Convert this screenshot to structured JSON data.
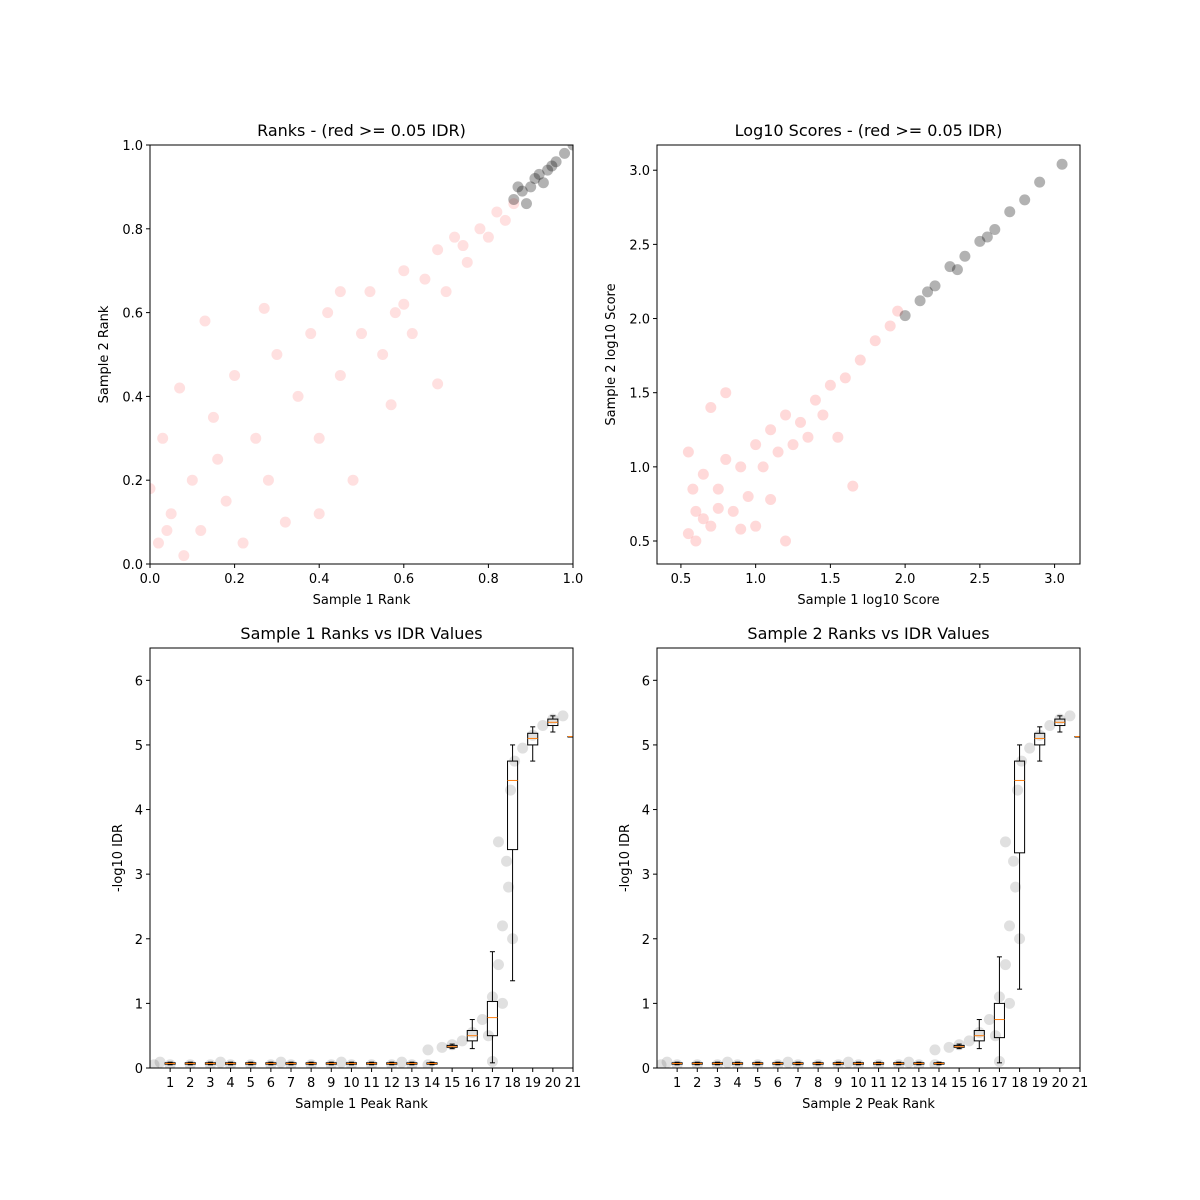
{
  "chart_data": [
    {
      "type": "scatter",
      "title": "Ranks - (red >= 0.05 IDR)",
      "xlabel": "Sample 1 Rank",
      "ylabel": "Sample 2 Rank",
      "xlim": [
        0,
        1
      ],
      "ylim": [
        0,
        1
      ],
      "xticks": [
        {
          "value": 0,
          "label": "0.0"
        },
        {
          "value": 0.2,
          "label": "0.2"
        },
        {
          "value": 0.4,
          "label": "0.4"
        },
        {
          "value": 0.6,
          "label": "0.6"
        },
        {
          "value": 0.8,
          "label": "0.8"
        },
        {
          "value": 1,
          "label": "1.0"
        }
      ],
      "yticks": [
        {
          "value": 0,
          "label": "0.0"
        },
        {
          "value": 0.2,
          "label": "0.2"
        },
        {
          "value": 0.4,
          "label": "0.4"
        },
        {
          "value": 0.6,
          "label": "0.6"
        },
        {
          "value": 0.8,
          "label": "0.8"
        },
        {
          "value": 1,
          "label": "1.0"
        }
      ],
      "series": [
        {
          "color": "#ff0000",
          "alpha": 0.12,
          "x": [
            0.02,
            0.05,
            0.03,
            0.08,
            0.1,
            0.12,
            0.15,
            0.18,
            0.2,
            0.22,
            0.25,
            0.28,
            0.3,
            0.32,
            0.35,
            0.38,
            0.4,
            0.42,
            0.45,
            0.48,
            0.5,
            0.52,
            0.55,
            0.58,
            0.6,
            0.62,
            0.65,
            0.68,
            0.7,
            0.72,
            0.75,
            0.78,
            0.8,
            0.82,
            0.84,
            0.86,
            0.07,
            0.13,
            0.27,
            0.4,
            0.57,
            0.68,
            0.0,
            0.45,
            0.04,
            0.16,
            0.6,
            0.74
          ],
          "values": [
            0.05,
            0.12,
            0.3,
            0.02,
            0.2,
            0.08,
            0.35,
            0.15,
            0.45,
            0.05,
            0.3,
            0.2,
            0.5,
            0.1,
            0.4,
            0.55,
            0.3,
            0.6,
            0.45,
            0.2,
            0.55,
            0.65,
            0.5,
            0.6,
            0.7,
            0.55,
            0.68,
            0.75,
            0.65,
            0.78,
            0.72,
            0.8,
            0.78,
            0.84,
            0.82,
            0.86,
            0.42,
            0.58,
            0.61,
            0.12,
            0.38,
            0.43,
            0.18,
            0.65,
            0.08,
            0.25,
            0.62,
            0.76
          ]
        },
        {
          "color": "#000000",
          "alpha": 0.3,
          "x": [
            0.86,
            0.88,
            0.9,
            0.92,
            0.94,
            0.96,
            0.98,
            1.0,
            0.89,
            0.93,
            0.87,
            0.95,
            0.91
          ],
          "values": [
            0.87,
            0.89,
            0.9,
            0.93,
            0.94,
            0.96,
            0.98,
            1.0,
            0.86,
            0.91,
            0.9,
            0.95,
            0.92
          ]
        }
      ]
    },
    {
      "type": "scatter",
      "title": "Log10 Scores - (red >= 0.05 IDR)",
      "xlabel": "Sample 1 log10 Score",
      "ylabel": "Sample 2 log10 Score",
      "xlim": [
        0.34,
        3.17
      ],
      "ylim": [
        0.345,
        3.17
      ],
      "xticks": [
        {
          "value": 0.5,
          "label": "0.5"
        },
        {
          "value": 1,
          "label": "1.0"
        },
        {
          "value": 1.5,
          "label": "1.5"
        },
        {
          "value": 2,
          "label": "2.0"
        },
        {
          "value": 2.5,
          "label": "2.5"
        },
        {
          "value": 3,
          "label": "3.0"
        }
      ],
      "yticks": [
        {
          "value": 0.5,
          "label": "0.5"
        },
        {
          "value": 1,
          "label": "1.0"
        },
        {
          "value": 1.5,
          "label": "1.5"
        },
        {
          "value": 2,
          "label": "2.0"
        },
        {
          "value": 2.5,
          "label": "2.5"
        },
        {
          "value": 3,
          "label": "3.0"
        }
      ],
      "series": [
        {
          "color": "#ff0000",
          "alpha": 0.15,
          "x": [
            0.55,
            0.6,
            0.65,
            0.7,
            0.75,
            0.8,
            0.85,
            0.9,
            0.95,
            1.0,
            1.05,
            1.1,
            1.15,
            1.2,
            1.3,
            1.4,
            1.5,
            1.6,
            1.7,
            1.8,
            1.9,
            1.95,
            0.55,
            0.6,
            0.8,
            1.0,
            1.2,
            1.55,
            1.65,
            0.7,
            1.1,
            0.58,
            0.65,
            0.75,
            0.9,
            1.25,
            1.35,
            1.45
          ],
          "values": [
            0.55,
            0.7,
            0.95,
            0.6,
            0.85,
            1.05,
            0.7,
            1.0,
            0.8,
            1.15,
            1.0,
            1.25,
            1.1,
            1.35,
            1.3,
            1.45,
            1.55,
            1.6,
            1.72,
            1.85,
            1.95,
            2.05,
            1.1,
            0.5,
            1.5,
            0.6,
            0.5,
            1.2,
            0.87,
            1.4,
            0.78,
            0.85,
            0.65,
            0.72,
            0.58,
            1.15,
            1.2,
            1.35
          ]
        },
        {
          "color": "#000000",
          "alpha": 0.3,
          "x": [
            2.0,
            2.1,
            2.2,
            2.3,
            2.4,
            2.5,
            2.6,
            2.7,
            2.8,
            2.9,
            3.05,
            2.15,
            2.35,
            2.55
          ],
          "values": [
            2.02,
            2.12,
            2.22,
            2.35,
            2.42,
            2.52,
            2.6,
            2.72,
            2.8,
            2.92,
            3.04,
            2.18,
            2.33,
            2.55
          ]
        }
      ]
    },
    {
      "type": "box",
      "title": "Sample 1 Ranks vs IDR Values",
      "xlabel": "Sample 1 Peak Rank",
      "ylabel": "-log10 IDR",
      "xlim": [
        0,
        21
      ],
      "ylim": [
        0,
        6.5
      ],
      "xticks": [
        1,
        2,
        3,
        4,
        5,
        6,
        7,
        8,
        9,
        10,
        11,
        12,
        13,
        14,
        15,
        16,
        17,
        18,
        19,
        20,
        21
      ],
      "yticks": [
        0,
        1,
        2,
        3,
        4,
        5,
        6
      ],
      "median_color": "#ff7f0e",
      "series": [
        {
          "color": "#000000",
          "alpha": 0.12,
          "x": [
            0.2,
            1,
            2,
            3,
            4,
            5,
            6,
            7,
            8,
            9,
            10,
            11,
            12,
            13,
            13.8,
            0.5,
            3.5,
            6.5,
            9.5,
            12.5,
            13.8,
            14.5,
            15,
            15.5,
            16,
            16.5,
            17,
            17.3,
            17.5,
            17.7,
            17.9,
            18.1,
            18.5,
            19,
            19.5,
            20,
            20.5,
            17,
            17.5,
            18,
            17.3,
            16.8,
            17.8
          ],
          "values": [
            0.05,
            0.05,
            0.05,
            0.05,
            0.05,
            0.05,
            0.05,
            0.05,
            0.05,
            0.05,
            0.05,
            0.05,
            0.05,
            0.05,
            0.05,
            0.09,
            0.09,
            0.09,
            0.09,
            0.09,
            0.28,
            0.32,
            0.36,
            0.42,
            0.55,
            0.75,
            1.1,
            1.6,
            2.2,
            3.2,
            4.3,
            4.75,
            4.95,
            5.15,
            5.3,
            5.4,
            5.45,
            0.1,
            1.0,
            2.0,
            3.5,
            0.5,
            2.8
          ]
        }
      ],
      "whislo": [
        0.05,
        0.05,
        0.05,
        0.05,
        0.05,
        0.05,
        0.05,
        0.05,
        0.05,
        0.05,
        0.05,
        0.05,
        0.05,
        0.05,
        0.3,
        0.3,
        0.08,
        1.35,
        4.75,
        5.2,
        5.13
      ],
      "q1": [
        0.06,
        0.06,
        0.06,
        0.06,
        0.06,
        0.06,
        0.06,
        0.06,
        0.06,
        0.06,
        0.06,
        0.06,
        0.06,
        0.06,
        0.32,
        0.42,
        0.5,
        3.38,
        5.0,
        5.3,
        5.13
      ],
      "median": [
        0.07,
        0.07,
        0.07,
        0.07,
        0.07,
        0.07,
        0.07,
        0.07,
        0.07,
        0.07,
        0.07,
        0.07,
        0.07,
        0.07,
        0.33,
        0.5,
        0.78,
        4.45,
        5.1,
        5.35,
        5.13
      ],
      "q3": [
        0.08,
        0.08,
        0.08,
        0.08,
        0.08,
        0.08,
        0.08,
        0.08,
        0.08,
        0.08,
        0.08,
        0.08,
        0.08,
        0.08,
        0.35,
        0.58,
        1.03,
        4.75,
        5.18,
        5.4,
        5.13
      ],
      "whishi": [
        0.09,
        0.09,
        0.09,
        0.09,
        0.09,
        0.09,
        0.09,
        0.09,
        0.09,
        0.09,
        0.09,
        0.09,
        0.09,
        0.09,
        0.37,
        0.75,
        1.8,
        5.0,
        5.28,
        5.45,
        5.13
      ]
    },
    {
      "type": "box",
      "title": "Sample 2 Ranks vs IDR Values",
      "xlabel": "Sample 2 Peak Rank",
      "ylabel": "-log10 IDR",
      "xlim": [
        0,
        21
      ],
      "ylim": [
        0,
        6.5
      ],
      "xticks": [
        1,
        2,
        3,
        4,
        5,
        6,
        7,
        8,
        9,
        10,
        11,
        12,
        13,
        14,
        15,
        16,
        17,
        18,
        19,
        20,
        21
      ],
      "yticks": [
        0,
        1,
        2,
        3,
        4,
        5,
        6
      ],
      "median_color": "#ff7f0e",
      "series": [
        {
          "color": "#000000",
          "alpha": 0.12,
          "x": [
            0.2,
            1,
            2,
            3,
            4,
            5,
            6,
            7,
            8,
            9,
            10,
            11,
            12,
            13,
            13.8,
            0.5,
            3.5,
            6.5,
            9.5,
            12.5,
            13.8,
            14.5,
            15,
            15.5,
            16,
            16.5,
            17,
            17.3,
            17.5,
            17.7,
            17.9,
            18.1,
            18.5,
            19,
            19.5,
            20,
            20.5,
            17,
            17.5,
            18,
            17.3,
            16.8,
            17.8
          ],
          "values": [
            0.05,
            0.05,
            0.05,
            0.05,
            0.05,
            0.05,
            0.05,
            0.05,
            0.05,
            0.05,
            0.05,
            0.05,
            0.05,
            0.05,
            0.05,
            0.09,
            0.09,
            0.09,
            0.09,
            0.09,
            0.28,
            0.32,
            0.36,
            0.42,
            0.55,
            0.75,
            1.1,
            1.6,
            2.2,
            3.2,
            4.3,
            4.75,
            4.95,
            5.15,
            5.3,
            5.4,
            5.45,
            0.1,
            1.0,
            2.0,
            3.5,
            0.5,
            2.8
          ]
        }
      ],
      "whislo": [
        0.05,
        0.05,
        0.05,
        0.05,
        0.05,
        0.05,
        0.05,
        0.05,
        0.05,
        0.05,
        0.05,
        0.05,
        0.05,
        0.05,
        0.3,
        0.3,
        0.08,
        1.22,
        4.75,
        5.2,
        5.13
      ],
      "q1": [
        0.06,
        0.06,
        0.06,
        0.06,
        0.06,
        0.06,
        0.06,
        0.06,
        0.06,
        0.06,
        0.06,
        0.06,
        0.06,
        0.06,
        0.32,
        0.42,
        0.47,
        3.33,
        5.0,
        5.3,
        5.13
      ],
      "median": [
        0.07,
        0.07,
        0.07,
        0.07,
        0.07,
        0.07,
        0.07,
        0.07,
        0.07,
        0.07,
        0.07,
        0.07,
        0.07,
        0.07,
        0.33,
        0.5,
        0.75,
        4.45,
        5.1,
        5.35,
        5.13
      ],
      "q3": [
        0.08,
        0.08,
        0.08,
        0.08,
        0.08,
        0.08,
        0.08,
        0.08,
        0.08,
        0.08,
        0.08,
        0.08,
        0.08,
        0.08,
        0.35,
        0.58,
        1.0,
        4.75,
        5.18,
        5.4,
        5.13
      ],
      "whishi": [
        0.09,
        0.09,
        0.09,
        0.09,
        0.09,
        0.09,
        0.09,
        0.09,
        0.09,
        0.09,
        0.09,
        0.09,
        0.09,
        0.09,
        0.37,
        0.75,
        1.72,
        5.0,
        5.28,
        5.45,
        5.13
      ]
    }
  ]
}
